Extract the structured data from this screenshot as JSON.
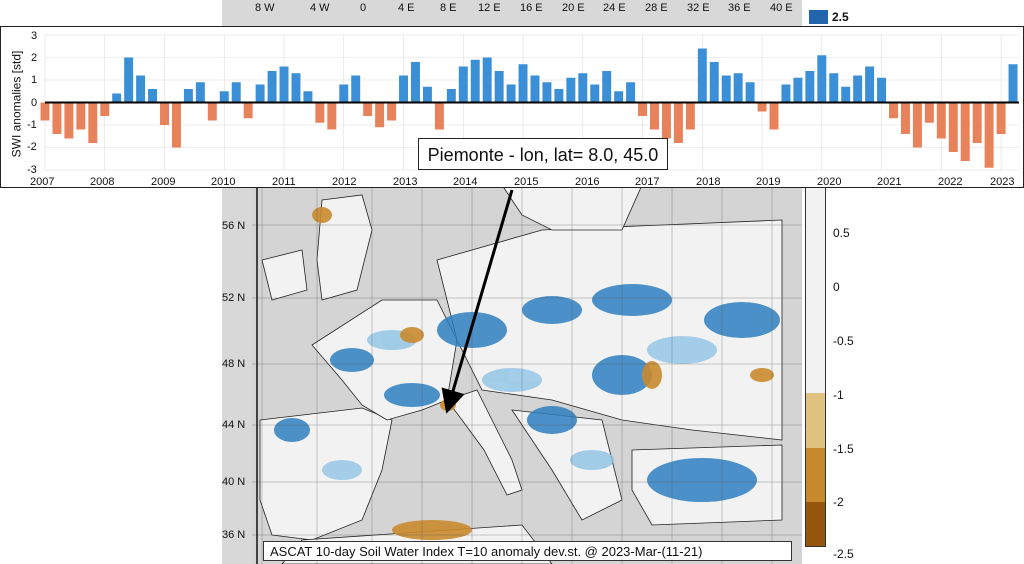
{
  "map": {
    "lon_ticks": [
      "8 W",
      "4 W",
      "0",
      "4 E",
      "8 E",
      "12 E",
      "16 E",
      "20 E",
      "24 E",
      "28 E",
      "32 E",
      "36 E",
      "40 E"
    ],
    "lat_ticks": [
      "56 N",
      "52 N",
      "48 N",
      "44 N",
      "40 N",
      "36 N"
    ],
    "caption": "ASCAT 10-day Soil Water Index T=10 anomaly dev.st. @ 2023-Mar-(11-21)",
    "colors": {
      "land": "#f2f2f2",
      "sea": "#d4d4d4",
      "wet": "#2f7fc1",
      "wet_light": "#8ec3e6",
      "dry": "#c98a2e",
      "dry_light": "#e3c07a"
    }
  },
  "colorbar": {
    "top_label": "2.5",
    "labels": [
      "0.5",
      "0",
      "-0.5",
      "-1",
      "-1.5",
      "-2",
      "-2.5"
    ],
    "colors": [
      "#f2f2f2",
      "#e1c27e",
      "#c8892c",
      "#96560e"
    ]
  },
  "timeseries": {
    "ylabel": "SWI anomalies [std]",
    "yticks": [
      "3",
      "2",
      "1",
      "0",
      "-1",
      "-2",
      "-3"
    ],
    "xticks": [
      "2007",
      "2008",
      "2009",
      "2010",
      "2011",
      "2012",
      "2013",
      "2014",
      "2015",
      "2016",
      "2017",
      "2018",
      "2019",
      "2020",
      "2021",
      "2022",
      "2023"
    ],
    "callout": "Piemonte - lon, lat= 8.0, 45.0",
    "positive_color": "#3b8fd6",
    "negative_color": "#e8825a"
  },
  "chart_data": {
    "type": "bar",
    "ylabel": "SWI anomalies [std]",
    "ylim": [
      -3,
      3
    ],
    "xlim": [
      2007,
      2023.3
    ],
    "x": [
      2007.0,
      2007.2,
      2007.4,
      2007.6,
      2007.8,
      2008.0,
      2008.2,
      2008.4,
      2008.6,
      2008.8,
      2009.0,
      2009.2,
      2009.4,
      2009.6,
      2009.8,
      2010.0,
      2010.2,
      2010.4,
      2010.6,
      2010.8,
      2011.0,
      2011.2,
      2011.4,
      2011.6,
      2011.8,
      2012.0,
      2012.2,
      2012.4,
      2012.6,
      2012.8,
      2013.0,
      2013.2,
      2013.4,
      2013.6,
      2013.8,
      2014.0,
      2014.2,
      2014.4,
      2014.6,
      2014.8,
      2015.0,
      2015.2,
      2015.4,
      2015.6,
      2015.8,
      2016.0,
      2016.2,
      2016.4,
      2016.6,
      2016.8,
      2017.0,
      2017.2,
      2017.4,
      2017.6,
      2017.8,
      2018.0,
      2018.2,
      2018.4,
      2018.6,
      2018.8,
      2019.0,
      2019.2,
      2019.4,
      2019.6,
      2019.8,
      2020.0,
      2020.2,
      2020.4,
      2020.6,
      2020.8,
      2021.0,
      2021.2,
      2021.4,
      2021.6,
      2021.8,
      2022.0,
      2022.2,
      2022.4,
      2022.6,
      2022.8,
      2023.0,
      2023.2
    ],
    "values": [
      -0.8,
      -1.4,
      -1.6,
      -1.2,
      -1.8,
      -0.6,
      0.4,
      2.0,
      1.2,
      0.6,
      -1.0,
      -2.0,
      0.6,
      0.9,
      -0.8,
      0.5,
      0.9,
      -0.7,
      0.8,
      1.4,
      1.6,
      1.3,
      0.5,
      -0.9,
      -1.2,
      0.8,
      1.2,
      -0.6,
      -1.1,
      -0.8,
      1.2,
      1.8,
      0.7,
      -1.2,
      0.6,
      1.6,
      1.9,
      2.0,
      1.4,
      0.8,
      1.7,
      1.2,
      0.9,
      0.6,
      1.1,
      1.3,
      0.8,
      1.4,
      0.5,
      0.9,
      -0.6,
      -1.2,
      -1.6,
      -1.8,
      -1.2,
      2.4,
      1.8,
      1.2,
      1.3,
      0.9,
      -0.4,
      -1.2,
      0.8,
      1.1,
      1.4,
      2.1,
      1.3,
      0.7,
      1.2,
      1.6,
      1.1,
      -0.7,
      -1.4,
      -2.0,
      -0.9,
      -1.6,
      -2.2,
      -2.6,
      -1.8,
      -2.9,
      -1.4,
      1.7
    ]
  }
}
